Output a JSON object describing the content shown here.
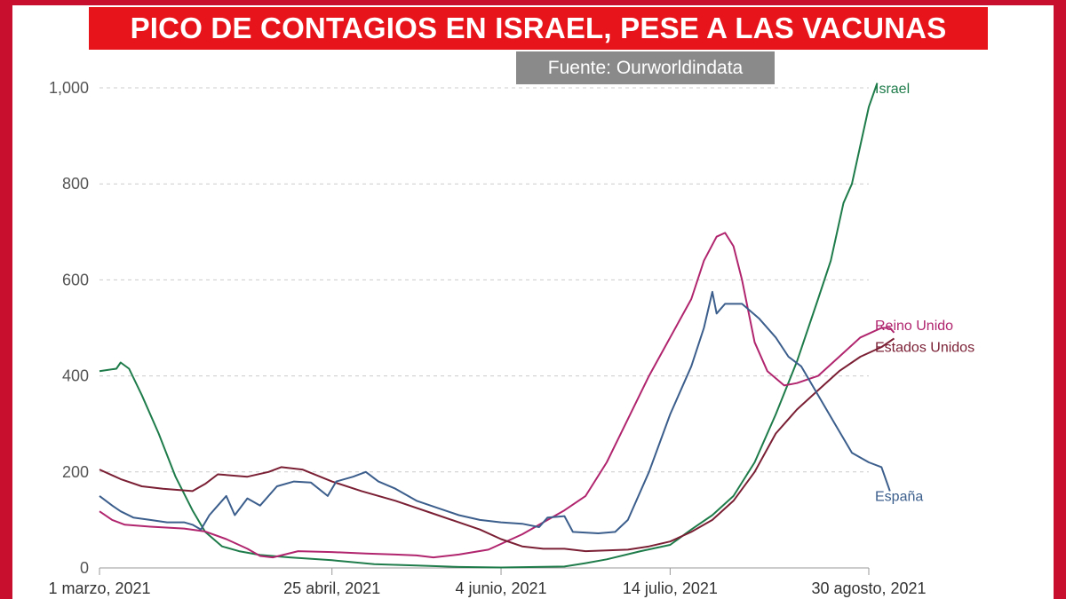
{
  "header": {
    "title": "PICO DE CONTAGIOS EN ISRAEL, PESE A LAS VACUNAS",
    "source": "Fuente: Ourworldindata"
  },
  "colors": {
    "frame": "#c8102e",
    "banner": "#e8141c",
    "badge": "#8a8a8a",
    "israel": "#1e7b4a",
    "reino_unido": "#b0256e",
    "estados_unidos": "#7a1f34",
    "espana": "#3b5e8c"
  },
  "chart_data": {
    "type": "line",
    "title": "PICO DE CONTAGIOS EN ISRAEL, PESE A LAS VACUNAS",
    "xlabel": "",
    "ylabel": "",
    "x_ticks": [
      "1 marzo, 2021",
      "25 abril, 2021",
      "4 junio, 2021",
      "14 julio, 2021",
      "30 agosto, 2021"
    ],
    "x_tick_days": [
      0,
      55,
      95,
      135,
      182
    ],
    "y_ticks": [
      "0",
      "200",
      "400",
      "600",
      "800",
      "1,000"
    ],
    "y_tick_values": [
      0,
      200,
      400,
      600,
      800,
      1000
    ],
    "xlim": [
      0,
      182
    ],
    "ylim": [
      0,
      1000
    ],
    "grid": "horizontal dashed",
    "legend": "labels at line ends (right)",
    "series": [
      {
        "name": "Israel",
        "color": "#1e7b4a",
        "points": [
          [
            0,
            410
          ],
          [
            4,
            415
          ],
          [
            5,
            428
          ],
          [
            7,
            415
          ],
          [
            10,
            360
          ],
          [
            14,
            280
          ],
          [
            18,
            190
          ],
          [
            22,
            120
          ],
          [
            25,
            75
          ],
          [
            29,
            45
          ],
          [
            33,
            35
          ],
          [
            38,
            27
          ],
          [
            45,
            22
          ],
          [
            55,
            16
          ],
          [
            65,
            8
          ],
          [
            75,
            5
          ],
          [
            85,
            2
          ],
          [
            95,
            1
          ],
          [
            110,
            3
          ],
          [
            115,
            10
          ],
          [
            120,
            18
          ],
          [
            128,
            35
          ],
          [
            135,
            48
          ],
          [
            140,
            80
          ],
          [
            145,
            110
          ],
          [
            150,
            150
          ],
          [
            155,
            220
          ],
          [
            160,
            320
          ],
          [
            165,
            430
          ],
          [
            170,
            560
          ],
          [
            173,
            640
          ],
          [
            176,
            760
          ],
          [
            178,
            800
          ],
          [
            180,
            880
          ],
          [
            182,
            960
          ],
          [
            184,
            1010
          ]
        ]
      },
      {
        "name": "Reino Unido",
        "color": "#b0256e",
        "points": [
          [
            0,
            118
          ],
          [
            3,
            100
          ],
          [
            6,
            90
          ],
          [
            12,
            86
          ],
          [
            20,
            82
          ],
          [
            25,
            76
          ],
          [
            30,
            60
          ],
          [
            35,
            40
          ],
          [
            38,
            25
          ],
          [
            41,
            22
          ],
          [
            47,
            35
          ],
          [
            55,
            33
          ],
          [
            63,
            30
          ],
          [
            70,
            28
          ],
          [
            75,
            26
          ],
          [
            79,
            22
          ],
          [
            85,
            28
          ],
          [
            92,
            38
          ],
          [
            100,
            70
          ],
          [
            110,
            120
          ],
          [
            115,
            150
          ],
          [
            120,
            220
          ],
          [
            125,
            310
          ],
          [
            130,
            400
          ],
          [
            135,
            480
          ],
          [
            140,
            560
          ],
          [
            143,
            640
          ],
          [
            146,
            690
          ],
          [
            148,
            698
          ],
          [
            150,
            670
          ],
          [
            152,
            600
          ],
          [
            155,
            470
          ],
          [
            158,
            410
          ],
          [
            162,
            380
          ],
          [
            165,
            385
          ],
          [
            170,
            400
          ],
          [
            175,
            440
          ],
          [
            180,
            480
          ],
          [
            185,
            500
          ],
          [
            187,
            500
          ],
          [
            188,
            490
          ]
        ]
      },
      {
        "name": "Estados Unidos",
        "color": "#7a1f34",
        "points": [
          [
            0,
            205
          ],
          [
            5,
            185
          ],
          [
            10,
            170
          ],
          [
            15,
            165
          ],
          [
            22,
            160
          ],
          [
            25,
            175
          ],
          [
            28,
            195
          ],
          [
            35,
            190
          ],
          [
            40,
            200
          ],
          [
            43,
            210
          ],
          [
            48,
            205
          ],
          [
            55,
            180
          ],
          [
            62,
            160
          ],
          [
            70,
            140
          ],
          [
            80,
            110
          ],
          [
            90,
            80
          ],
          [
            95,
            60
          ],
          [
            100,
            45
          ],
          [
            105,
            40
          ],
          [
            110,
            40
          ],
          [
            115,
            35
          ],
          [
            125,
            38
          ],
          [
            130,
            45
          ],
          [
            135,
            55
          ],
          [
            140,
            75
          ],
          [
            145,
            100
          ],
          [
            150,
            140
          ],
          [
            155,
            200
          ],
          [
            160,
            280
          ],
          [
            165,
            330
          ],
          [
            170,
            370
          ],
          [
            175,
            410
          ],
          [
            180,
            440
          ],
          [
            185,
            460
          ],
          [
            188,
            478
          ]
        ]
      },
      {
        "name": "España",
        "color": "#3b5e8c",
        "points": [
          [
            0,
            150
          ],
          [
            3,
            130
          ],
          [
            5,
            118
          ],
          [
            8,
            105
          ],
          [
            12,
            100
          ],
          [
            16,
            95
          ],
          [
            20,
            95
          ],
          [
            22,
            90
          ],
          [
            24,
            80
          ],
          [
            26,
            110
          ],
          [
            28,
            130
          ],
          [
            30,
            150
          ],
          [
            32,
            110
          ],
          [
            35,
            145
          ],
          [
            38,
            130
          ],
          [
            42,
            170
          ],
          [
            46,
            180
          ],
          [
            50,
            178
          ],
          [
            54,
            150
          ],
          [
            56,
            180
          ],
          [
            60,
            190
          ],
          [
            63,
            200
          ],
          [
            66,
            180
          ],
          [
            70,
            165
          ],
          [
            75,
            140
          ],
          [
            80,
            125
          ],
          [
            85,
            110
          ],
          [
            90,
            100
          ],
          [
            95,
            95
          ],
          [
            100,
            92
          ],
          [
            104,
            85
          ],
          [
            106,
            105
          ],
          [
            110,
            108
          ],
          [
            112,
            75
          ],
          [
            118,
            72
          ],
          [
            122,
            75
          ],
          [
            125,
            100
          ],
          [
            130,
            200
          ],
          [
            135,
            320
          ],
          [
            140,
            420
          ],
          [
            143,
            500
          ],
          [
            145,
            575
          ],
          [
            146,
            530
          ],
          [
            148,
            550
          ],
          [
            152,
            550
          ],
          [
            156,
            520
          ],
          [
            160,
            480
          ],
          [
            163,
            440
          ],
          [
            166,
            420
          ],
          [
            170,
            360
          ],
          [
            174,
            300
          ],
          [
            178,
            240
          ],
          [
            182,
            220
          ],
          [
            185,
            210
          ],
          [
            187,
            160
          ]
        ]
      }
    ]
  }
}
